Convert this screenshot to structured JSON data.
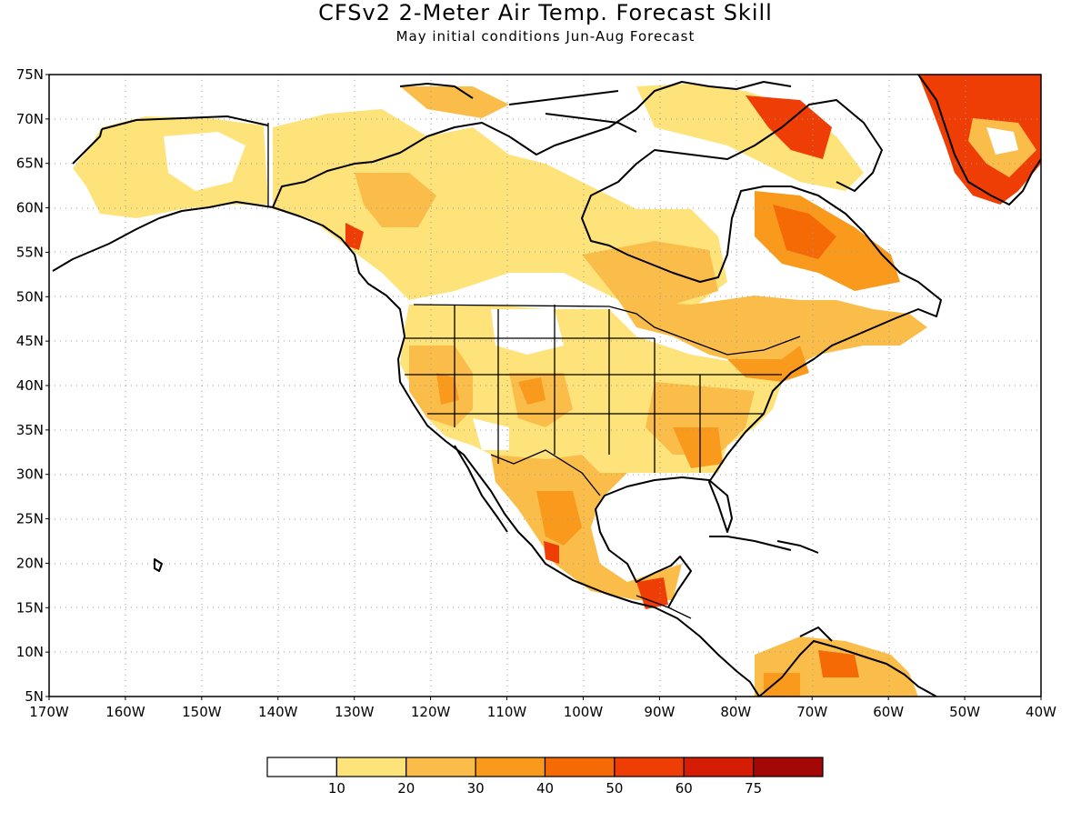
{
  "title": "CFSv2 2-Meter Air Temp. Forecast Skill",
  "subtitle": "May initial conditions   Jun-Aug Forecast",
  "map": {
    "lon_range": [
      -170,
      -40
    ],
    "lat_range": [
      5,
      75
    ],
    "lat_ticks": [
      "75N",
      "70N",
      "65N",
      "60N",
      "55N",
      "50N",
      "45N",
      "40N",
      "35N",
      "30N",
      "25N",
      "20N",
      "15N",
      "10N",
      "5N"
    ],
    "lon_ticks": [
      "170W",
      "160W",
      "150W",
      "140W",
      "130W",
      "120W",
      "110W",
      "100W",
      "90W",
      "80W",
      "70W",
      "60W",
      "50W",
      "40W"
    ],
    "grid": true
  },
  "colorbar": {
    "colors": [
      "#ffffff",
      "#fde37a",
      "#fbbd4a",
      "#f99a1c",
      "#f66a06",
      "#ef3d06",
      "#d51d06",
      "#a30806"
    ],
    "labels": [
      "10",
      "20",
      "30",
      "40",
      "50",
      "60",
      "75"
    ]
  }
}
